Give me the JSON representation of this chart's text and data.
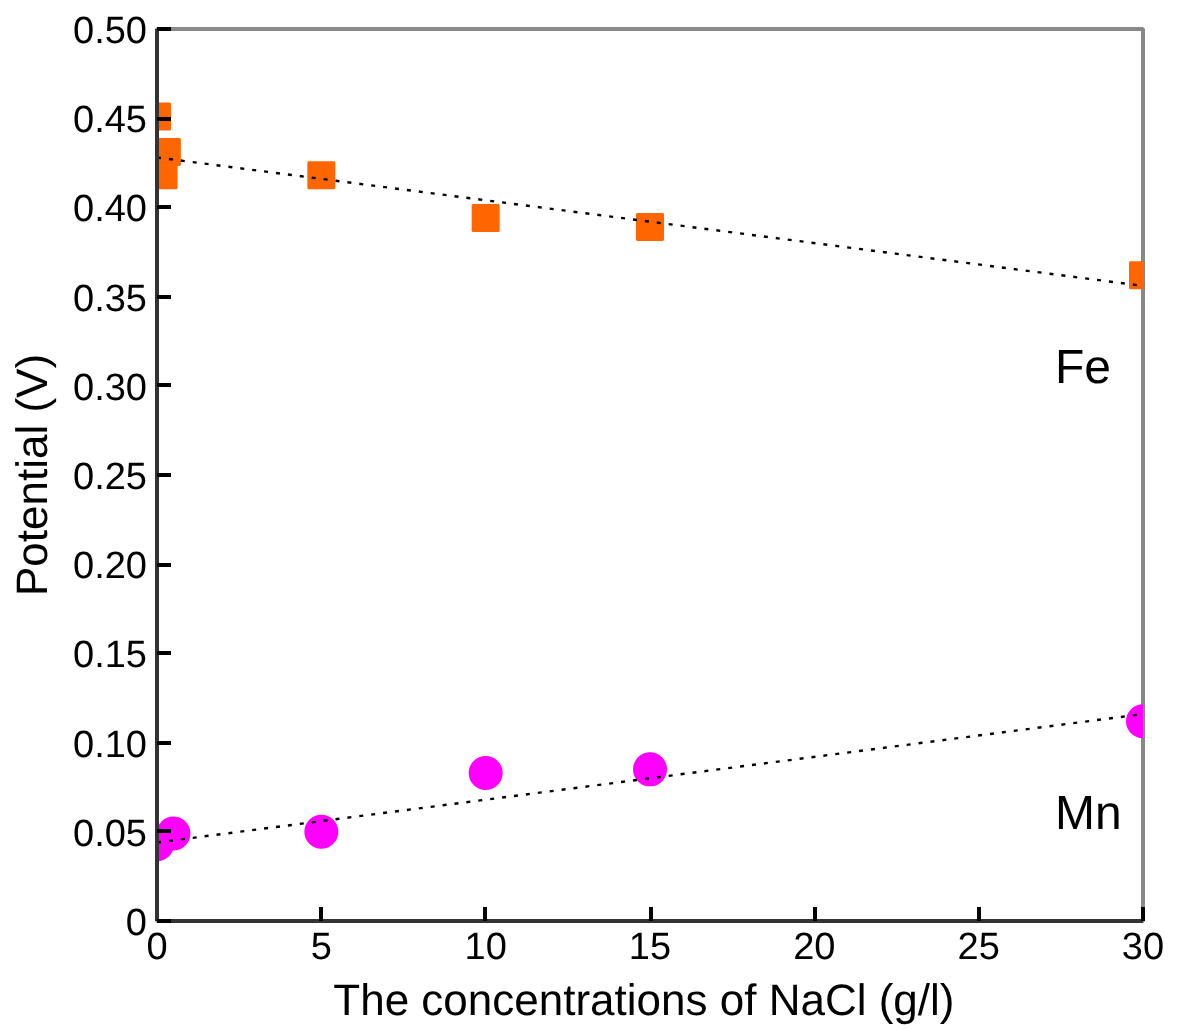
{
  "chart_data": {
    "type": "scatter",
    "xlabel": "The concentrations of NaCl  (g/l)",
    "ylabel": "Potential (V)",
    "xlim": [
      0,
      30
    ],
    "xticks": [
      0,
      5,
      10,
      15,
      20,
      25,
      30
    ],
    "ylim": [
      0,
      0.5
    ],
    "yticks": [
      0,
      {
        "value": 0.05,
        "label": "0.05"
      },
      {
        "value": 0.1,
        "label": "0.10"
      },
      {
        "value": 0.15,
        "label": "0.15"
      },
      {
        "value": 0.2,
        "label": "0.20"
      },
      {
        "value": 0.25,
        "label": "0.25"
      },
      {
        "value": 0.3,
        "label": "0.30"
      },
      {
        "value": 0.35,
        "label": "0.35"
      },
      {
        "value": 0.4,
        "label": "0.40"
      },
      {
        "value": 0.45,
        "label": "0.45"
      },
      {
        "value": 0.5,
        "label": "0.50"
      }
    ],
    "grid": false,
    "series": [
      {
        "name": "Fe",
        "color": "#ff6600",
        "marker": "square",
        "x": [
          0,
          0.3,
          0.2,
          5,
          10,
          15,
          30
        ],
        "values": [
          0.451,
          0.431,
          0.418,
          0.418,
          0.394,
          0.389,
          0.362
        ]
      },
      {
        "name": "Mn",
        "color": "#ff00ff",
        "marker": "circle",
        "x": [
          0,
          0.5,
          5,
          10,
          15,
          30
        ],
        "values": [
          0.043,
          0.049,
          0.05,
          0.083,
          0.085,
          0.112
        ]
      },
      {
        "type": "line",
        "color": "#000000",
        "line_style": "dotted",
        "x": [
          0,
          30
        ],
        "values": [
          0.428,
          0.356
        ]
      },
      {
        "type": "line",
        "color": "#000000",
        "line_style": "dotted",
        "x": [
          0,
          30
        ],
        "values": [
          0.044,
          0.116
        ]
      }
    ]
  }
}
